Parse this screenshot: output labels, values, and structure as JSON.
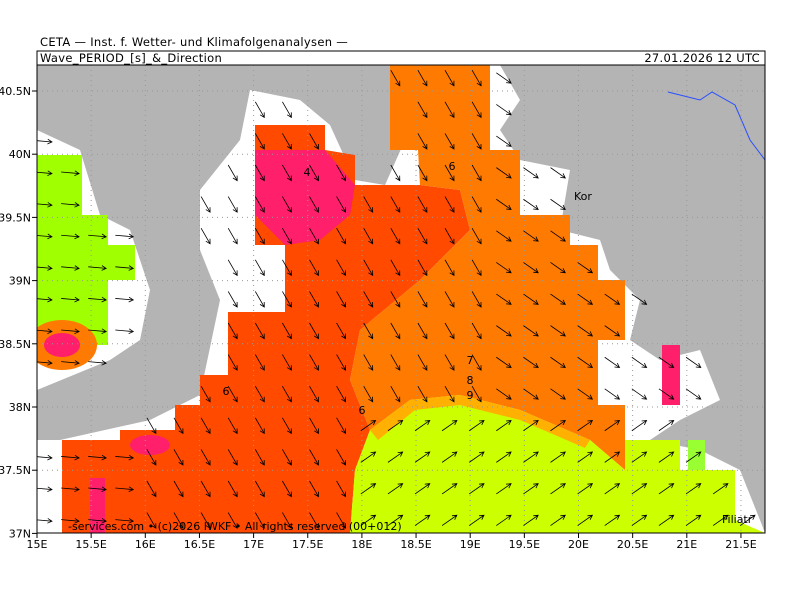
{
  "header": {
    "institute": "CETA — Inst. f. Wetter- und Klimafolgenanalysen —",
    "title": "Wave_PERIOD_[s]_&_Direction",
    "valid_time": "27.01.2026 12 UTC"
  },
  "map": {
    "lon_labels": [
      "15E",
      "15.5E",
      "16E",
      "16.5E",
      "17E",
      "17.5E",
      "18E",
      "18.5E",
      "19E",
      "19.5E",
      "20E",
      "20.5E",
      "21E",
      "21.5E"
    ],
    "lat_labels": [
      "40.5N",
      "40N",
      "39.5N",
      "39N",
      "38.5N",
      "38N",
      "37.5N",
      "37N"
    ],
    "contour_labels": [
      "4",
      "6",
      "6",
      "6",
      "7",
      "8",
      "9"
    ],
    "place_labels": [
      "Kor",
      "Filiatr"
    ],
    "footer": "-services.com • (c)2026 IWKF • All rights reserved (00+012)"
  }
}
